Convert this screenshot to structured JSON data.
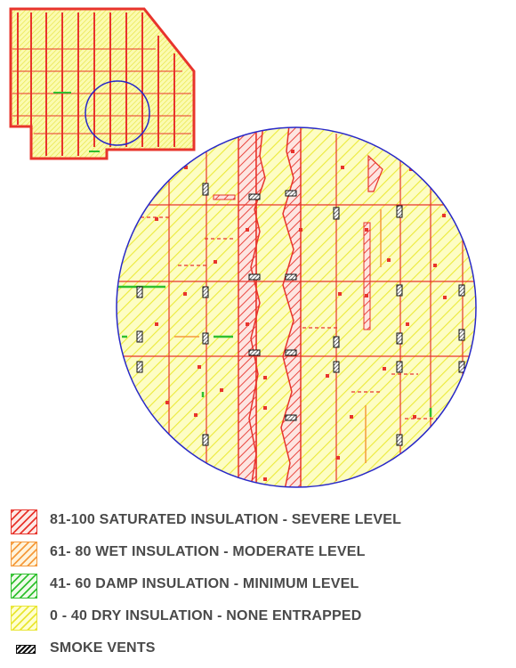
{
  "legend": {
    "items": [
      {
        "label": "81-100 SATURATED INSULATION - SEVERE LEVEL",
        "color": "#e8342c",
        "fill": "#fde9e6"
      },
      {
        "label": "61- 80 WET INSULATION - MODERATE LEVEL",
        "color": "#f59a3c",
        "fill": "#fff4dc"
      },
      {
        "label": "41- 60 DAMP INSULATION - MINIMUM LEVEL",
        "color": "#2fc02f",
        "fill": "#effbea"
      },
      {
        "label": "0 - 40 DRY INSULATION - NONE ENTRAPPED",
        "color": "#e9e632",
        "fill": "#ffffd0"
      }
    ],
    "smoke_vents_label": "SMOKE VENTS"
  },
  "colors": {
    "severe": "#e8342c",
    "moderate": "#f59a3c",
    "damp": "#2fc02f",
    "dry": "#ecea3a",
    "dry_fill": "#fbfbb0",
    "outline": "#2828c8",
    "vent": "#111111"
  },
  "icons": {
    "smoke_vent": "hatched-rectangle-icon"
  }
}
